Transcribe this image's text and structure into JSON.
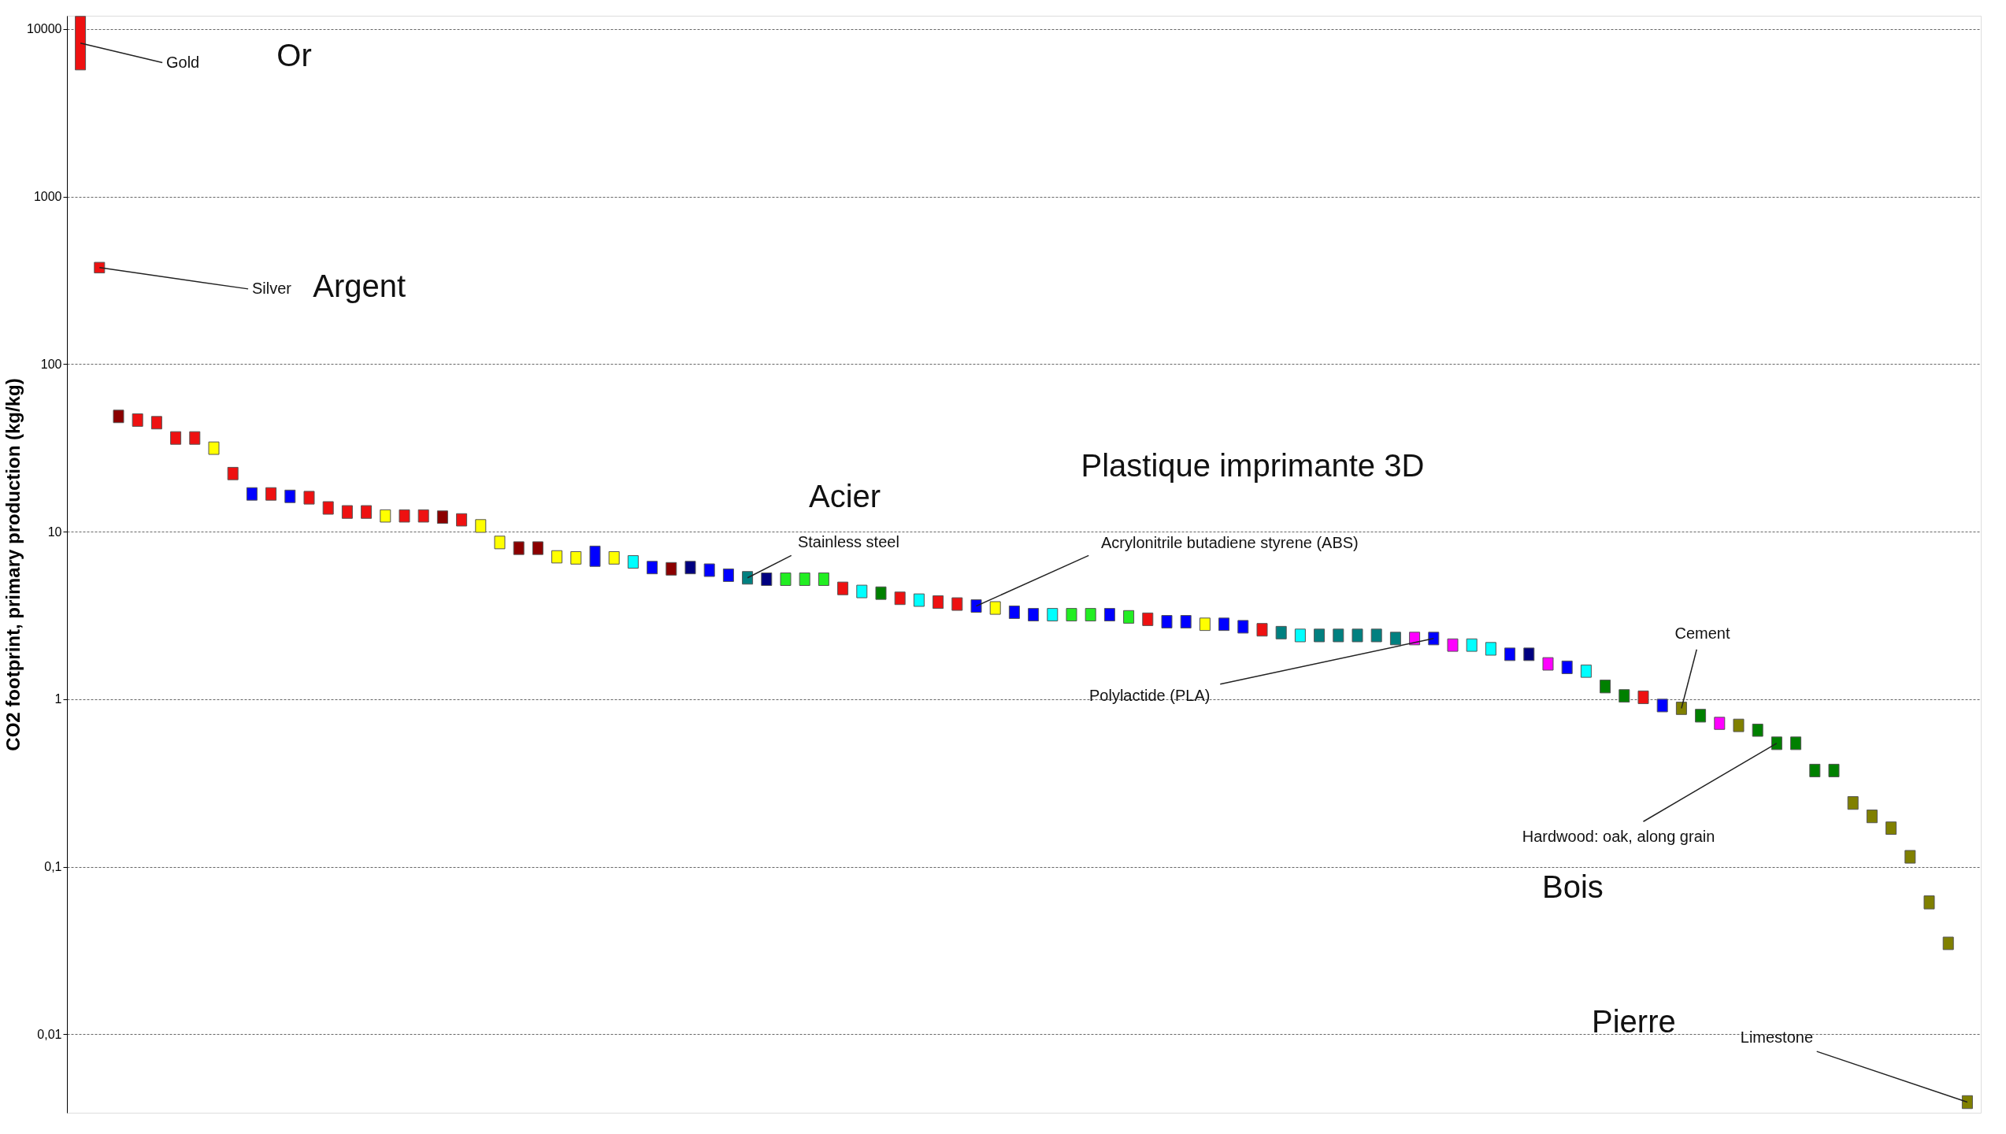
{
  "chart_data": {
    "type": "bar",
    "ylabel": "CO2 footprint, primary production (kg/kg)",
    "categories": [
      null,
      null,
      null,
      null,
      null,
      null,
      null,
      null,
      null,
      null,
      null,
      null,
      null,
      null,
      null,
      null,
      null,
      null,
      null,
      null,
      null,
      null,
      null,
      null,
      null,
      null,
      null,
      null,
      null,
      null,
      null,
      null,
      null,
      null,
      null,
      null,
      null,
      null,
      null,
      null,
      null,
      null,
      null,
      null,
      null,
      null,
      null,
      null,
      null,
      null,
      null,
      null,
      null,
      null,
      null,
      null,
      null,
      null,
      null,
      null,
      null,
      null,
      null,
      null,
      null,
      null,
      null,
      null,
      null,
      null,
      null,
      null,
      null,
      null,
      null,
      null,
      null,
      null,
      null,
      null,
      null,
      null,
      null,
      null,
      null,
      null,
      null,
      null,
      null,
      null,
      null,
      null,
      null,
      null,
      null,
      null,
      null,
      null,
      null,
      null
    ],
    "base": [
      5700,
      350,
      44.7,
      42.5,
      41.0,
      33.2,
      33.2,
      28.9,
      20.4,
      15.4,
      15.4,
      14.9,
      14.6,
      12.7,
      12.0,
      12.0,
      11.4,
      11.4,
      11.4,
      11.2,
      10.8,
      9.9,
      7.9,
      7.3,
      7.3,
      6.5,
      6.4,
      6.2,
      6.4,
      6.05,
      5.6,
      5.5,
      5.6,
      5.4,
      5.04,
      4.86,
      4.77,
      4.77,
      4.77,
      4.77,
      4.2,
      4.03,
      3.94,
      3.67,
      3.58,
      3.48,
      3.39,
      3.3,
      3.21,
      3.03,
      2.93,
      2.93,
      2.93,
      2.93,
      2.93,
      2.84,
      2.75,
      2.66,
      2.66,
      2.57,
      2.57,
      2.48,
      2.38,
      2.29,
      2.2,
      2.2,
      2.2,
      2.2,
      2.2,
      2.11,
      2.11,
      2.11,
      1.93,
      1.93,
      1.83,
      1.7,
      1.7,
      1.49,
      1.42,
      1.35,
      1.09,
      0.96,
      0.94,
      0.84,
      0.81,
      0.73,
      0.66,
      0.64,
      0.6,
      0.5,
      0.5,
      0.344,
      0.344,
      0.22,
      0.183,
      0.156,
      0.105,
      0.056,
      0.032,
      0.0036
    ],
    "values": [
      6200,
      55,
      8.4,
      8.0,
      7.7,
      6.3,
      6.3,
      5.4,
      3.8,
      2.9,
      2.9,
      2.8,
      2.8,
      2.4,
      2.3,
      2.3,
      2.1,
      2.1,
      2.1,
      2.1,
      2.0,
      1.9,
      1.5,
      1.4,
      1.4,
      1.2,
      1.2,
      2.0,
      1.2,
      1.14,
      1.05,
      1.04,
      1.05,
      1.02,
      0.95,
      0.92,
      0.9,
      0.9,
      0.9,
      0.9,
      0.8,
      0.76,
      0.74,
      0.69,
      0.67,
      0.66,
      0.64,
      0.62,
      0.61,
      0.57,
      0.55,
      0.55,
      0.55,
      0.55,
      0.55,
      0.54,
      0.52,
      0.5,
      0.5,
      0.48,
      0.48,
      0.47,
      0.45,
      0.43,
      0.42,
      0.42,
      0.42,
      0.42,
      0.42,
      0.4,
      0.4,
      0.4,
      0.36,
      0.36,
      0.35,
      0.32,
      0.32,
      0.28,
      0.27,
      0.25,
      0.21,
      0.18,
      0.18,
      0.16,
      0.15,
      0.14,
      0.12,
      0.12,
      0.11,
      0.095,
      0.095,
      0.065,
      0.065,
      0.042,
      0.035,
      0.029,
      0.02,
      0.011,
      0.006,
      0.0007
    ],
    "colors": [
      "#ee1111",
      "#ee1111",
      "#8b0000",
      "#ee1111",
      "#ee1111",
      "#ee1111",
      "#ee1111",
      "#ffff00",
      "#ee1111",
      "#0000ff",
      "#ee1111",
      "#0000ff",
      "#ee1111",
      "#ee1111",
      "#ee1111",
      "#ee1111",
      "#ffff00",
      "#ee1111",
      "#ee1111",
      "#8b0000",
      "#ee1111",
      "#ffff00",
      "#ffff00",
      "#8b0000",
      "#8b0000",
      "#ffff00",
      "#ffff00",
      "#0000ff",
      "#ffff00",
      "#00ffff",
      "#0000ff",
      "#8b0000",
      "#000080",
      "#0000ff",
      "#0000ff",
      "#008080",
      "#000080",
      "#22ee22",
      "#22ee22",
      "#22ee22",
      "#ee1111",
      "#00ffff",
      "#008000",
      "#ee1111",
      "#00ffff",
      "#ee1111",
      "#ee1111",
      "#0000ff",
      "#ffff00",
      "#0000ff",
      "#0000ff",
      "#00ffff",
      "#22ee22",
      "#22ee22",
      "#0000ff",
      "#22ee22",
      "#ee1111",
      "#0000ff",
      "#0000ff",
      "#ffff00",
      "#0000ff",
      "#0000ff",
      "#ee1111",
      "#008080",
      "#00ffff",
      "#008080",
      "#008080",
      "#008080",
      "#008080",
      "#008080",
      "#ff00ff",
      "#0000ff",
      "#ff00ff",
      "#00ffff",
      "#00ffff",
      "#0000ff",
      "#000080",
      "#ff00ff",
      "#0000ff",
      "#00ffff",
      "#008000",
      "#008000",
      "#ee1111",
      "#0000ff",
      "#808000",
      "#008000",
      "#ff00ff",
      "#808000",
      "#008000",
      "#008000",
      "#008000",
      "#008000",
      "#008000",
      "#808000",
      "#808000",
      "#808000",
      "#808000",
      "#808000",
      "#808000",
      "#808000"
    ],
    "ylim": [
      0.0034,
      12000
    ],
    "yticks": [
      {
        "value": 0.01,
        "label": "0,01"
      },
      {
        "value": 0.1,
        "label": "0,1"
      },
      1,
      10,
      100,
      1000,
      10000
    ],
    "log": true,
    "grid": "y",
    "tick_labels": "y",
    "annotations": [
      "Gold",
      "Or",
      "Silver",
      "Argent",
      "Acier",
      "Stainless steel",
      "Plastique imprimante 3D",
      "Acrylonitrile butadiene styrene (ABS)",
      "Polylactide (PLA)",
      "Cement",
      "Hardwood: oak, along grain",
      "Bois",
      "Pierre",
      "Limestone"
    ]
  }
}
